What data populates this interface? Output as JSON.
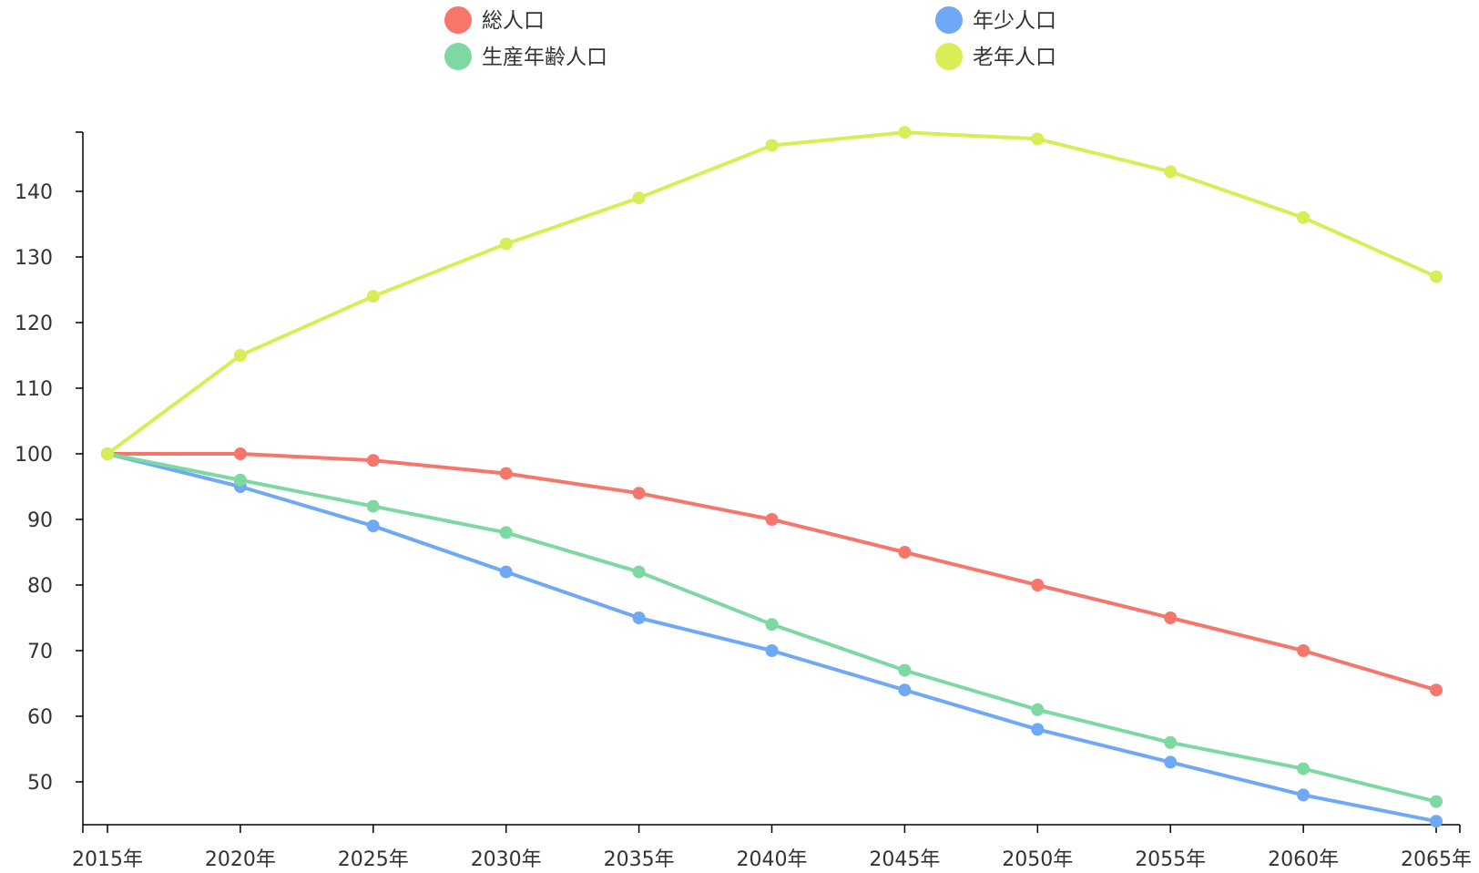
{
  "chart_data": {
    "type": "line",
    "title": "",
    "xlabel": "",
    "ylabel": "",
    "categories": [
      "2015年",
      "2020年",
      "2025年",
      "2030年",
      "2035年",
      "2040年",
      "2045年",
      "2050年",
      "2055年",
      "2060年",
      "2065年"
    ],
    "y_ticks": [
      50,
      60,
      70,
      80,
      90,
      100,
      110,
      120,
      130,
      140
    ],
    "ylim": [
      44,
      149
    ],
    "grid": false,
    "legend_position": "top",
    "series": [
      {
        "name": "総人口",
        "color": "#f7766b",
        "values": [
          100,
          100,
          99,
          97,
          94,
          90,
          85,
          80,
          75,
          70,
          64
        ]
      },
      {
        "name": "年少人口",
        "color": "#6fa8f7",
        "values": [
          100,
          95,
          89,
          82,
          75,
          70,
          64,
          58,
          53,
          48,
          44
        ]
      },
      {
        "name": "生産年齢人口",
        "color": "#7dd8a1",
        "values": [
          100,
          96,
          92,
          88,
          82,
          74,
          67,
          61,
          56,
          52,
          47
        ]
      },
      {
        "name": "老年人口",
        "color": "#d9ed56",
        "values": [
          100,
          115,
          124,
          132,
          139,
          147,
          149,
          148,
          143,
          136,
          127
        ]
      }
    ]
  }
}
